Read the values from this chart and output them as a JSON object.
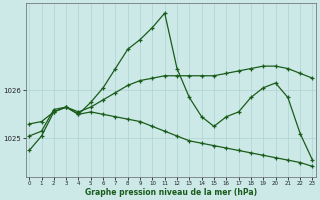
{
  "title": "Graphe pression niveau de la mer (hPa)",
  "background_color": "#cce9e8",
  "grid_color": "#afd4d3",
  "line_color": "#1a5c1a",
  "x_ticks": [
    0,
    1,
    2,
    3,
    4,
    5,
    6,
    7,
    8,
    9,
    10,
    11,
    12,
    13,
    14,
    15,
    16,
    17,
    18,
    19,
    20,
    21,
    22,
    23
  ],
  "y_ticks": [
    1025,
    1026
  ],
  "ylim": [
    1024.2,
    1027.8
  ],
  "xlim": [
    -0.3,
    23.3
  ],
  "s1_x": [
    0,
    1,
    2,
    3,
    4,
    5,
    6,
    7,
    8,
    9,
    10,
    11,
    12,
    13,
    14,
    15,
    16,
    17,
    18,
    19,
    20,
    21,
    22,
    23
  ],
  "s1_y": [
    1024.75,
    1025.05,
    1025.55,
    1025.65,
    1025.5,
    1025.75,
    1026.05,
    1026.45,
    1026.85,
    1027.05,
    1027.3,
    1027.6,
    1026.45,
    1025.85,
    1025.45,
    1025.25,
    1025.45,
    1025.55,
    1025.85,
    1026.05,
    1026.15,
    1025.85,
    1025.1,
    1024.55
  ],
  "s2_x": [
    0,
    1,
    2,
    3,
    4,
    5,
    6,
    7,
    8,
    9,
    10,
    11,
    12,
    13,
    14,
    15,
    16,
    17,
    18,
    19,
    20,
    21,
    22,
    23
  ],
  "s2_y": [
    1025.05,
    1025.15,
    1025.6,
    1025.65,
    1025.55,
    1025.65,
    1025.8,
    1025.95,
    1026.1,
    1026.2,
    1026.25,
    1026.3,
    1026.3,
    1026.3,
    1026.3,
    1026.3,
    1026.35,
    1026.4,
    1026.45,
    1026.5,
    1026.5,
    1026.45,
    1026.35,
    1026.25
  ],
  "s3_x": [
    0,
    1,
    2,
    3,
    4,
    5,
    6,
    7,
    8,
    9,
    10,
    11,
    12,
    13,
    14,
    15,
    16,
    17,
    18,
    19,
    20,
    21,
    22,
    23
  ],
  "s3_y": [
    1025.3,
    1025.35,
    1025.55,
    1025.65,
    1025.5,
    1025.55,
    1025.5,
    1025.45,
    1025.4,
    1025.35,
    1025.25,
    1025.15,
    1025.05,
    1024.95,
    1024.9,
    1024.85,
    1024.8,
    1024.75,
    1024.7,
    1024.65,
    1024.6,
    1024.55,
    1024.5,
    1024.42
  ]
}
